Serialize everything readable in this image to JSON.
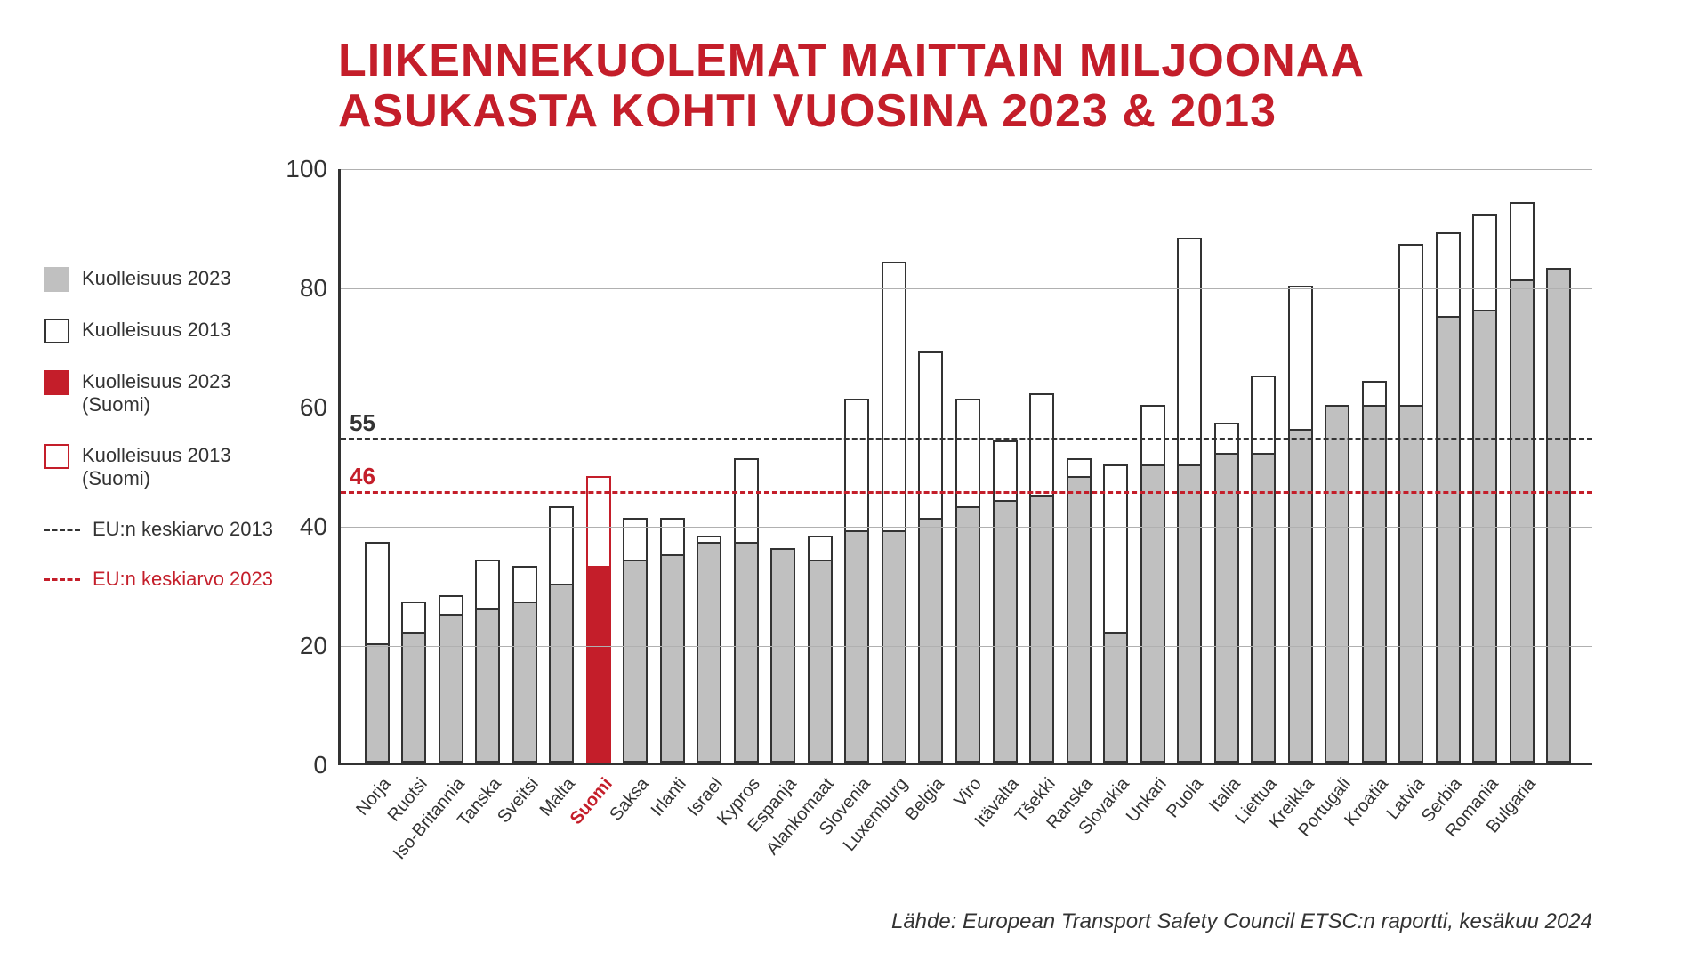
{
  "title_line1": "LIIKENNEKUOLEMAT MAITTAIN MILJOONAA",
  "title_line2": "ASUKASTA KOHTI VUOSINA 2023 & 2013",
  "source": "Lähde: European Transport Safety Council ETSC:n raportti, kesäkuu 2024",
  "legend": {
    "k2023": "Kuolleisuus 2023",
    "k2013": "Kuolleisuus 2013",
    "k2023_suomi": "Kuolleisuus 2023 (Suomi)",
    "k2013_suomi": "Kuolleisuus 2013 (Suomi)",
    "eu2013": "EU:n keskiarvo 2013",
    "eu2023": "EU:n keskiarvo 2023"
  },
  "colors": {
    "fill2023": "#c0c0c0",
    "fill2023_suomi": "#c41e2a",
    "border2013_suomi": "#c41e2a",
    "border": "#333333",
    "ref2013": "#333333",
    "ref2023": "#c41e2a",
    "suomi_label": "#c41e2a"
  },
  "chart": {
    "type": "bar",
    "ylim": [
      0,
      100
    ],
    "yticks": [
      0,
      20,
      40,
      60,
      80,
      100
    ],
    "ref_lines": {
      "eu2013": {
        "value": 55,
        "label": "55"
      },
      "eu2023": {
        "value": 46,
        "label": "46"
      }
    },
    "highlight_country": "Suomi",
    "countries": [
      {
        "name": "Norja",
        "v2023": 20,
        "v2013": 37
      },
      {
        "name": "Ruotsi",
        "v2023": 22,
        "v2013": 27
      },
      {
        "name": "Iso-Britannia",
        "v2023": 25,
        "v2013": 28
      },
      {
        "name": "Tanska",
        "v2023": 26,
        "v2013": 34
      },
      {
        "name": "Sveitsi",
        "v2023": 27,
        "v2013": 33
      },
      {
        "name": "Malta",
        "v2023": 30,
        "v2013": 43
      },
      {
        "name": "Suomi",
        "v2023": 33,
        "v2013": 48
      },
      {
        "name": "Saksa",
        "v2023": 34,
        "v2013": 41
      },
      {
        "name": "Irlanti",
        "v2023": 35,
        "v2013": 41
      },
      {
        "name": "Israel",
        "v2023": 37,
        "v2013": 38
      },
      {
        "name": "Kypros",
        "v2023": 37,
        "v2013": 51
      },
      {
        "name": "Espanja",
        "v2023": 36,
        "v2013": 36
      },
      {
        "name": "Alankomaat",
        "v2023": 34,
        "v2013": 38
      },
      {
        "name": "Slovenia",
        "v2023": 39,
        "v2013": 61
      },
      {
        "name": "Luxemburg",
        "v2023": 39,
        "v2013": 84
      },
      {
        "name": "Belgia",
        "v2023": 41,
        "v2013": 69
      },
      {
        "name": "Viro",
        "v2023": 43,
        "v2013": 61
      },
      {
        "name": "Itävalta",
        "v2023": 44,
        "v2013": 54
      },
      {
        "name": "Tšekki",
        "v2023": 45,
        "v2013": 62
      },
      {
        "name": "Ranska",
        "v2023": 48,
        "v2013": 51
      },
      {
        "name": "Slovakia",
        "v2023": 22,
        "v2013": 50
      },
      {
        "name": "Unkari",
        "v2023": 50,
        "v2013": 60
      },
      {
        "name": "Puola",
        "v2023": 50,
        "v2013": 88
      },
      {
        "name": "Italia",
        "v2023": 52,
        "v2013": 57
      },
      {
        "name": "Liettua",
        "v2023": 52,
        "v2013": 65
      },
      {
        "name": "Kreikka",
        "v2023": 56,
        "v2013": 80
      },
      {
        "name": "Portugali",
        "v2023": 60,
        "v2013": 60
      },
      {
        "name": "Kroatia",
        "v2023": 60,
        "v2013": 64
      },
      {
        "name": "Latvia",
        "v2023": 60,
        "v2013": 87
      },
      {
        "name": "Serbia",
        "v2023": 75,
        "v2013": 89
      },
      {
        "name": "Romania",
        "v2023": 76,
        "v2013": 92
      },
      {
        "name": "Bulgaria",
        "v2023": 81,
        "v2013": 94
      },
      {
        "name": " ",
        "v2023": 83,
        "v2013": 83
      }
    ]
  }
}
